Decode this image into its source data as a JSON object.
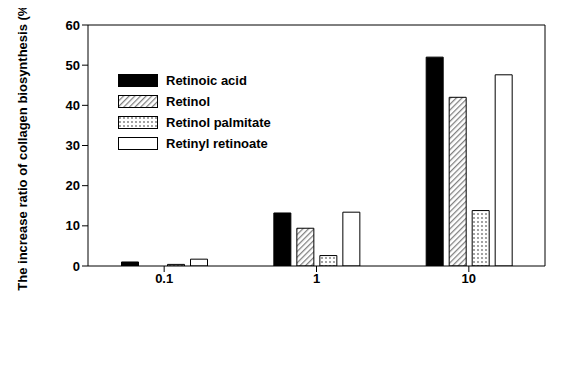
{
  "chart_data": {
    "type": "bar",
    "y_label": "The increase ratio of collagen biosynthesis (%)",
    "categories": [
      "0.1",
      "1",
      "10"
    ],
    "series": [
      {
        "name": "Retinoic acid",
        "color": "#000000",
        "values": [
          1.0,
          13.2,
          52.0
        ]
      },
      {
        "name": "Retinol",
        "color": "#808080",
        "values": [
          0,
          9.4,
          42.0
        ]
      },
      {
        "name": "Retinol palmitate",
        "color": "#ffffff",
        "values": [
          0.4,
          2.6,
          13.8
        ]
      },
      {
        "name": "Retinyl retinoate",
        "color": "#ffffff",
        "values": [
          1.7,
          13.4,
          47.6
        ]
      }
    ],
    "ylim": [
      0,
      60
    ],
    "yticks": [
      0,
      10,
      20,
      30,
      40,
      50,
      60
    ],
    "grid": false,
    "legend": "upper left"
  }
}
